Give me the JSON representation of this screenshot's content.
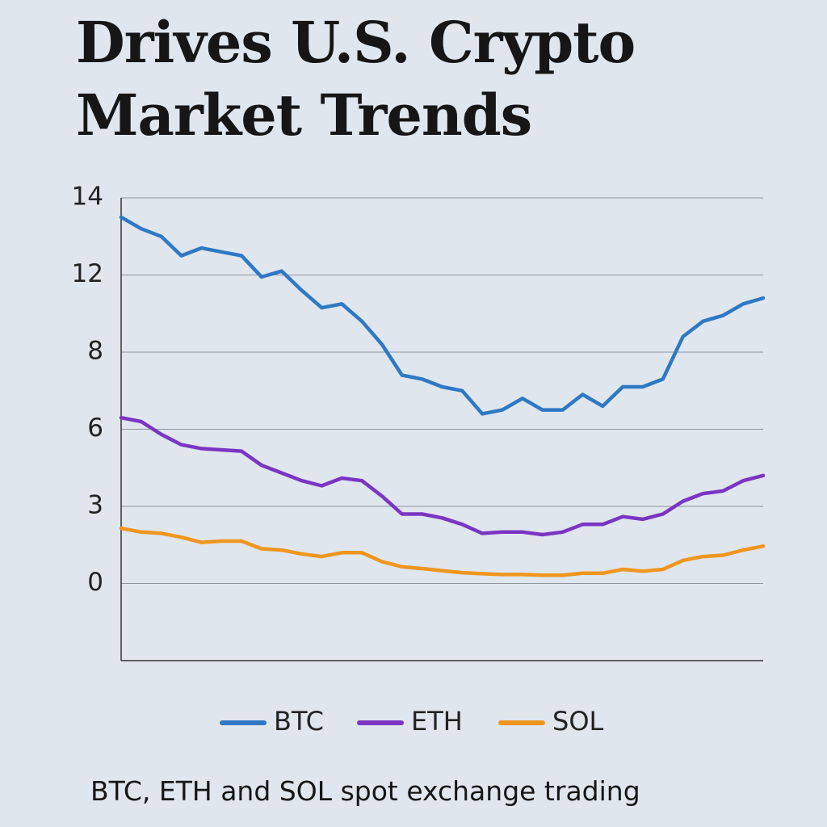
{
  "chart_data": {
    "type": "line",
    "title": "Drives U.S. Crypto Market Trends",
    "subtitle": "BTC, ETH and SOL spot exchange trading",
    "categories": [
      null,
      null,
      null,
      null,
      null,
      null,
      null,
      null,
      null,
      null,
      null,
      null,
      null,
      null,
      null,
      null,
      null,
      null,
      null,
      null,
      null,
      null,
      null,
      null,
      null,
      null,
      null,
      null,
      null,
      null,
      null,
      null,
      null
    ],
    "ylim": [
      -3,
      14
    ],
    "yticks": [
      14,
      12,
      8,
      6,
      3,
      0
    ],
    "grid": true,
    "legend": "bottom",
    "series": [
      {
        "name": "BTC",
        "color": "#2f78c4",
        "values": [
          13.5,
          13.2,
          13.0,
          12.5,
          12.7,
          12.6,
          12.5,
          11.9,
          12.1,
          11.2,
          10.3,
          10.5,
          9.6,
          8.4,
          7.4,
          7.3,
          7.1,
          7.0,
          6.4,
          6.5,
          6.8,
          6.5,
          6.5,
          6.9,
          6.6,
          7.1,
          7.1,
          7.3,
          8.8,
          9.6,
          9.9,
          10.5,
          10.8
        ]
      },
      {
        "name": "ETH",
        "color": "#7b35c2",
        "values": [
          6.3,
          6.2,
          5.8,
          5.4,
          5.25,
          5.2,
          5.15,
          4.6,
          4.3,
          4.0,
          3.8,
          4.1,
          4.0,
          3.4,
          2.7,
          2.7,
          2.55,
          2.3,
          1.95,
          2.0,
          2.0,
          1.9,
          2.0,
          2.3,
          2.3,
          2.6,
          2.5,
          2.7,
          3.2,
          3.5,
          3.6,
          4.0,
          4.2
        ]
      },
      {
        "name": "SOL",
        "color": "#f0961e",
        "values": [
          2.15,
          2.0,
          1.95,
          1.8,
          1.6,
          1.65,
          1.65,
          1.35,
          1.3,
          1.15,
          1.05,
          1.2,
          1.2,
          0.85,
          0.65,
          0.58,
          0.5,
          0.42,
          0.38,
          0.35,
          0.35,
          0.32,
          0.32,
          0.4,
          0.4,
          0.55,
          0.48,
          0.55,
          0.9,
          1.05,
          1.1,
          1.3,
          1.45
        ]
      }
    ]
  }
}
